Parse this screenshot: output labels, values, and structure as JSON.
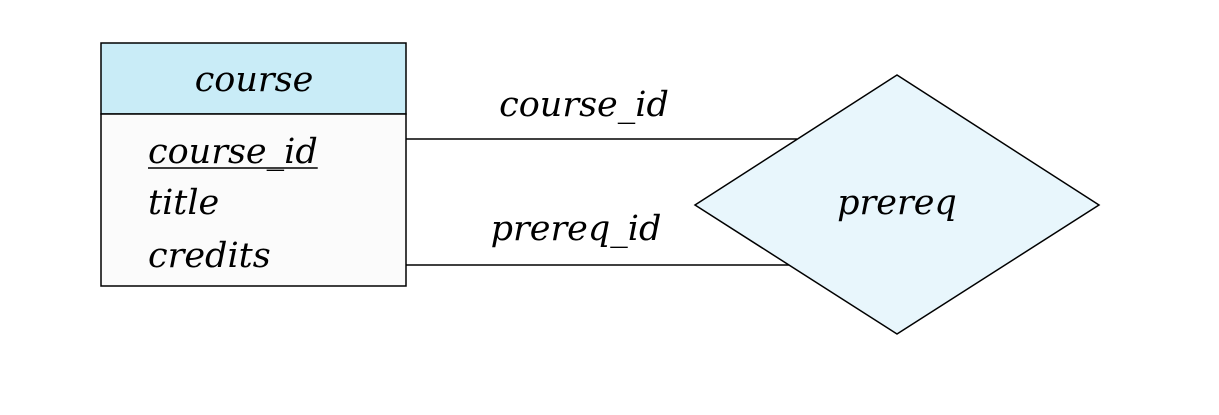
{
  "entity": {
    "name": "course",
    "header_fill": "#c9ecf7",
    "body_fill": "#fbfbfb",
    "attributes": [
      {
        "label": "course_id",
        "primary_key": true
      },
      {
        "label": "title",
        "primary_key": false
      },
      {
        "label": "credits",
        "primary_key": false
      }
    ]
  },
  "relationship": {
    "name": "prereq",
    "fill": "#e8f6fc"
  },
  "connections": [
    {
      "role_label": "course_id"
    },
    {
      "role_label": "prereq_id"
    }
  ],
  "colors": {
    "stroke": "#000000",
    "background": "#ffffff"
  }
}
